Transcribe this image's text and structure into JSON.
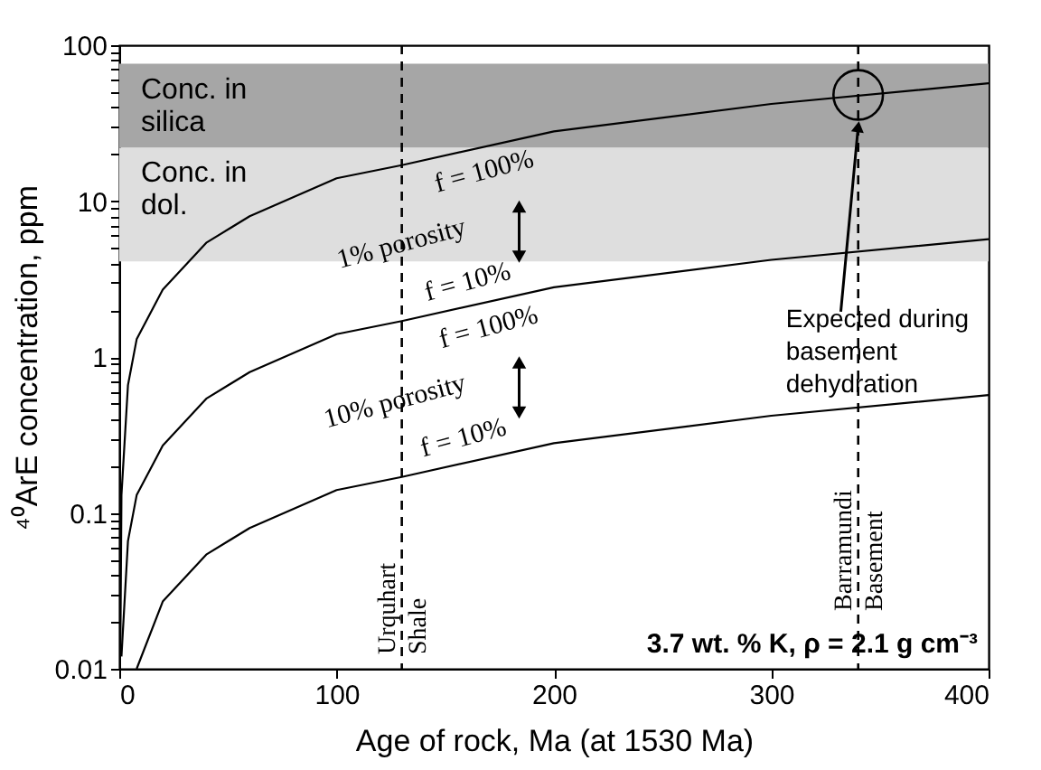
{
  "chart_data": {
    "type": "line",
    "xlabel": "Age of rock, Ma (at 1530 Ma)",
    "ylabel": "⁴⁰ArE concentration, ppm",
    "log": "y",
    "grid": false,
    "marker": "none",
    "line_style": "solid",
    "xlim": [
      0,
      400
    ],
    "xticks": [
      0,
      100,
      200,
      300,
      400
    ],
    "ylim": [
      0.01,
      100
    ],
    "yticks": [
      0.01,
      {
        "value": 0.02,
        "label": null
      },
      {
        "value": 0.03,
        "label": null
      },
      {
        "value": 0.04,
        "label": null
      },
      {
        "value": 0.05,
        "label": null
      },
      {
        "value": 0.06,
        "label": null
      },
      {
        "value": 0.07,
        "label": null
      },
      {
        "value": 0.08,
        "label": null
      },
      {
        "value": 0.09,
        "label": null
      },
      0.1,
      {
        "value": 0.2,
        "label": null
      },
      {
        "value": 0.3,
        "label": null
      },
      {
        "value": 0.4,
        "label": null
      },
      {
        "value": 0.5,
        "label": null
      },
      {
        "value": 0.6,
        "label": null
      },
      {
        "value": 0.7,
        "label": null
      },
      {
        "value": 0.8,
        "label": null
      },
      {
        "value": 0.9,
        "label": null
      },
      1,
      {
        "value": 2,
        "label": null
      },
      {
        "value": 3,
        "label": null
      },
      {
        "value": 4,
        "label": null
      },
      {
        "value": 5,
        "label": null
      },
      {
        "value": 6,
        "label": null
      },
      {
        "value": 7,
        "label": null
      },
      {
        "value": 8,
        "label": null
      },
      {
        "value": 9,
        "label": null
      },
      10,
      {
        "value": 20,
        "label": null
      },
      {
        "value": 30,
        "label": null
      },
      {
        "value": 40,
        "label": null
      },
      {
        "value": 50,
        "label": null
      },
      {
        "value": 60,
        "label": null
      },
      {
        "value": 70,
        "label": null
      },
      {
        "value": 80,
        "label": null
      },
      {
        "value": 90,
        "label": null
      },
      100
    ],
    "series": [
      {
        "color": "#000000",
        "x": [
          0.5,
          1,
          4,
          8,
          20,
          40,
          60,
          100,
          130,
          200,
          300,
          400
        ],
        "values": [
          0.013,
          0.13,
          0.66,
          1.3,
          2.7,
          5.4,
          8,
          14,
          17,
          28,
          42,
          57
        ]
      },
      {
        "color": "#000000",
        "x": [
          1,
          4,
          8,
          20,
          40,
          60,
          100,
          130,
          200,
          300,
          400
        ],
        "values": [
          0.012,
          0.066,
          0.13,
          0.27,
          0.54,
          0.8,
          1.4,
          1.7,
          2.8,
          4.2,
          5.7
        ]
      },
      {
        "color": "#000000",
        "x": [
          8,
          20,
          40,
          60,
          100,
          130,
          200,
          300,
          400
        ],
        "values": [
          0.01,
          0.027,
          0.054,
          0.08,
          0.14,
          0.17,
          0.28,
          0.42,
          0.57
        ]
      },
      {
        "type": "scatter",
        "marker": "circle",
        "color": "#000000",
        "x": [
          340
        ],
        "values": [
          48
        ]
      }
    ],
    "bands": [
      {
        "axis": "y",
        "from": 22,
        "to": 76,
        "label": "Conc. in\nsilica",
        "color": "#a6a6a6"
      },
      {
        "axis": "y",
        "from": 4.1,
        "to": 22,
        "label": "Conc. in\ndol.",
        "color": "#dedede"
      }
    ],
    "ref_lines": [
      {
        "axis": "x",
        "value": 130,
        "label": "Urquhart\nShale",
        "line_style": "dashed"
      },
      {
        "axis": "x",
        "value": 340,
        "label": "Barramundi\nBasement",
        "line_style": "dashed"
      }
    ],
    "annotations": [
      {
        "text": "f = 100%",
        "x": 165,
        "y": 22
      },
      "1% porosity",
      {
        "text": "f = 10%",
        "x": 163,
        "y": 2.2
      },
      {
        "text": "f = 100%",
        "x": 167,
        "y": 2.2
      },
      "10% porosity",
      {
        "text": "f = 10%",
        "x": 161,
        "y": 0.22
      },
      {
        "text": "Expected during\nbasement\ndehydration",
        "x": 340,
        "y": 30
      },
      "3.7 wt. % K, ρ = 2.1 g cm⁻³"
    ]
  }
}
